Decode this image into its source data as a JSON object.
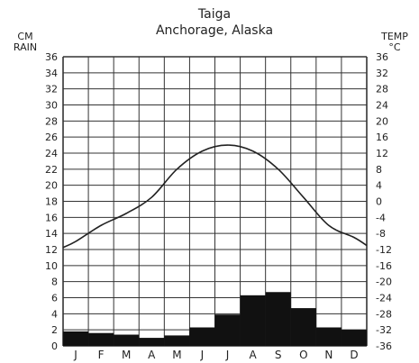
{
  "chart_data": {
    "type": "bar",
    "title": "Taiga",
    "subtitle": "Anchorage, Alaska",
    "categories": [
      "J",
      "F",
      "M",
      "A",
      "M",
      "J",
      "J",
      "A",
      "S",
      "O",
      "N",
      "D"
    ],
    "left_axis_label": [
      "CM",
      "RAIN"
    ],
    "right_axis_label": [
      "TEMP",
      "°C"
    ],
    "left_ticks": [
      "36",
      "34",
      "32",
      "30",
      "28",
      "26",
      "24",
      "22",
      "20",
      "18",
      "16",
      "14",
      "12",
      "10",
      "8",
      "6",
      "4",
      "2",
      "0"
    ],
    "right_ticks": [
      "36",
      "32",
      "28",
      "24",
      "20",
      "16",
      "12",
      "8",
      "4",
      "0",
      "-4",
      "-8",
      "-12",
      "-16",
      "-20",
      "-24",
      "-28",
      "-32",
      "-36"
    ],
    "ylim_rain": [
      0,
      36
    ],
    "ylim_temp": [
      -36,
      36
    ],
    "series": [
      {
        "type": "bar",
        "values": [
          1.8,
          1.6,
          1.4,
          1.0,
          1.3,
          2.3,
          3.9,
          6.3,
          6.7,
          4.7,
          2.3,
          2.0
        ]
      },
      {
        "type": "line",
        "values": [
          -10,
          -6,
          -3,
          1,
          8,
          12.5,
          14,
          12.5,
          8,
          1,
          -6,
          -9
        ]
      }
    ],
    "grid": true
  }
}
